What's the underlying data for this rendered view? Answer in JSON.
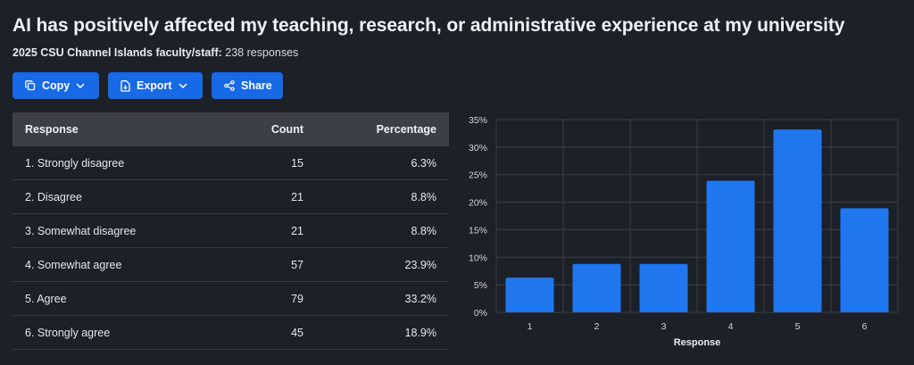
{
  "title": "AI has positively affected my teaching, research, or administrative experience at my university",
  "subtitle": {
    "source": "2025 CSU Channel Islands faculty/staff:",
    "responses": "238 responses"
  },
  "toolbar": {
    "copy_label": "Copy",
    "export_label": "Export",
    "share_label": "Share"
  },
  "table": {
    "headers": {
      "response": "Response",
      "count": "Count",
      "percentage": "Percentage"
    },
    "rows": [
      {
        "response": "1. Strongly disagree",
        "count": "15",
        "percentage": "6.3%"
      },
      {
        "response": "2. Disagree",
        "count": "21",
        "percentage": "8.8%"
      },
      {
        "response": "3. Somewhat disagree",
        "count": "21",
        "percentage": "8.8%"
      },
      {
        "response": "4. Somewhat agree",
        "count": "57",
        "percentage": "23.9%"
      },
      {
        "response": "5. Agree",
        "count": "79",
        "percentage": "33.2%"
      },
      {
        "response": "6. Strongly agree",
        "count": "45",
        "percentage": "18.9%"
      }
    ]
  },
  "chart_data": {
    "type": "bar",
    "categories": [
      "1",
      "2",
      "3",
      "4",
      "5",
      "6"
    ],
    "values": [
      6.3,
      8.8,
      8.8,
      23.9,
      33.2,
      18.9
    ],
    "title": "",
    "xlabel": "Response",
    "ylabel": "",
    "ylim": [
      0,
      35
    ],
    "yticks": [
      "0%",
      "5%",
      "10%",
      "15%",
      "20%",
      "25%",
      "30%",
      "35%"
    ],
    "grid": true,
    "bar_color": "#1f77f0"
  }
}
